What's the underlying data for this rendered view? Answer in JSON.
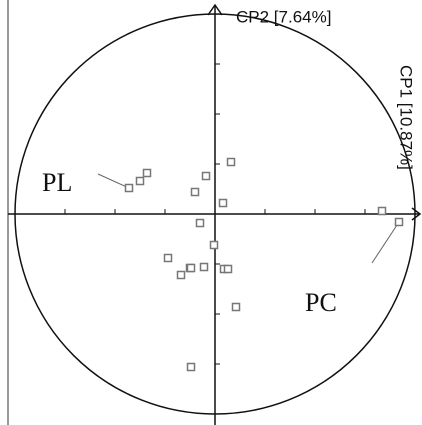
{
  "chart_data": {
    "type": "scatter",
    "x_label": "CP1 [10.87%]",
    "y_label": "CP2 [7.64%]",
    "annotations": [
      "PL",
      "PC"
    ],
    "xlim": [
      -1.035,
      1.025
    ],
    "ylim": [
      -1.055,
      1.045
    ],
    "xticks": [
      -0.75,
      -0.5,
      -0.25,
      0.25,
      0.5,
      0.75
    ],
    "yticks": [
      -0.75,
      -0.5,
      -0.25,
      0.25,
      0.5,
      0.75
    ],
    "x": [
      -0.43,
      -0.375,
      -0.34,
      -0.1,
      -0.045,
      0.08,
      0.04,
      -0.075,
      -0.005,
      -0.235,
      -0.17,
      -0.125,
      -0.12,
      -0.055,
      0.045,
      0.065,
      0.105,
      -0.12,
      0.835,
      0.92
    ],
    "series": [
      {
        "color": "#777777",
        "values": [
          0.13,
          0.165,
          0.205,
          0.11,
          0.19,
          0.26,
          0.055,
          -0.045,
          -0.155,
          -0.22,
          -0.305,
          -0.27,
          -0.27,
          -0.265,
          -0.275,
          -0.275,
          -0.465,
          -0.765,
          0.015,
          -0.04
        ]
      }
    ]
  }
}
